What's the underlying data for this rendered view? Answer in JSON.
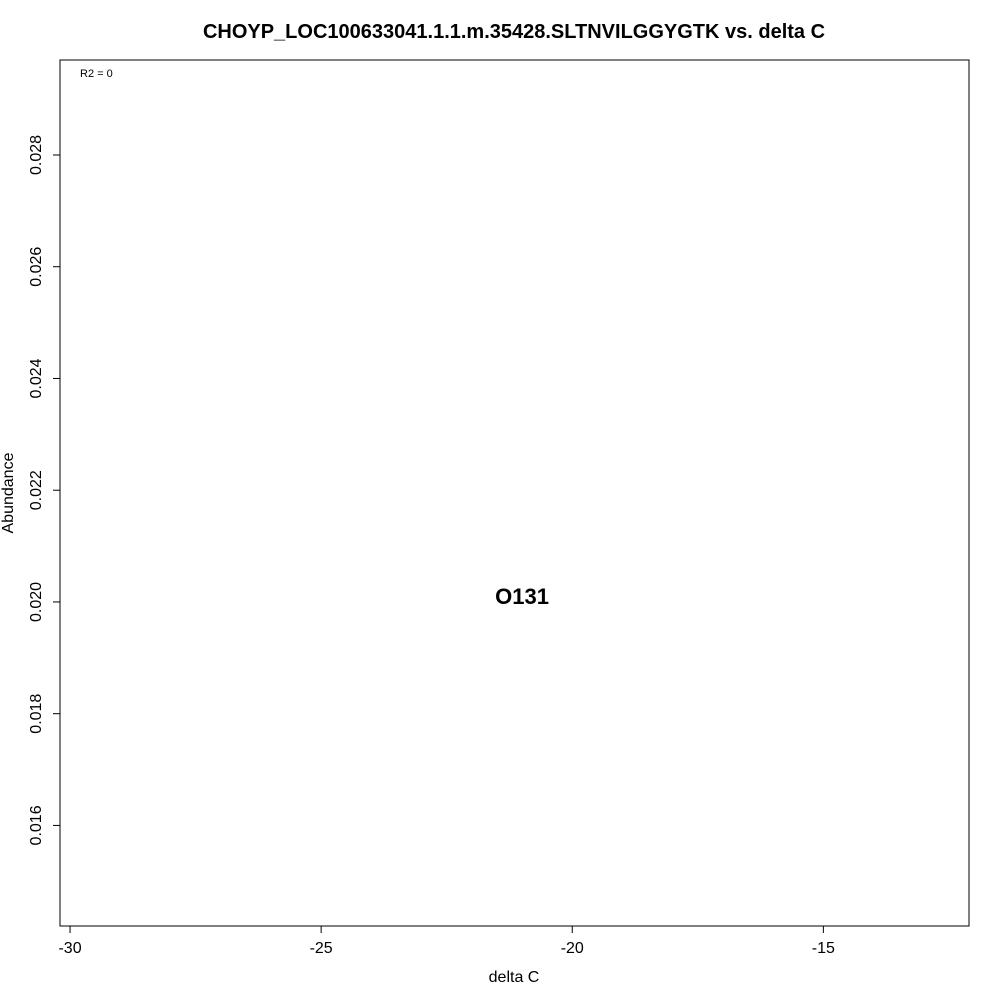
{
  "chart_data": {
    "type": "scatter",
    "title": "CHOYP_LOC100633041.1.1.m.35428.SLTNVILGGYGTK vs. delta C",
    "xlabel": "delta C",
    "ylabel": "Abundance",
    "xlim": [
      -30.2,
      -12.1
    ],
    "ylim": [
      0.0142,
      0.0297
    ],
    "x_ticks": [
      -30,
      -25,
      -20,
      -15
    ],
    "x_tick_labels": [
      "-30",
      "-25",
      "-20",
      "-15"
    ],
    "y_ticks": [
      0.016,
      0.018,
      0.02,
      0.022,
      0.024,
      0.026,
      0.028
    ],
    "y_tick_labels": [
      "0.016",
      "0.018",
      "0.020",
      "0.022",
      "0.024",
      "0.026",
      "0.028"
    ],
    "annotation": "R2 = 0",
    "grid": false,
    "points": [
      {
        "label": "O131",
        "x": -21.0,
        "y": 0.0201
      }
    ]
  }
}
